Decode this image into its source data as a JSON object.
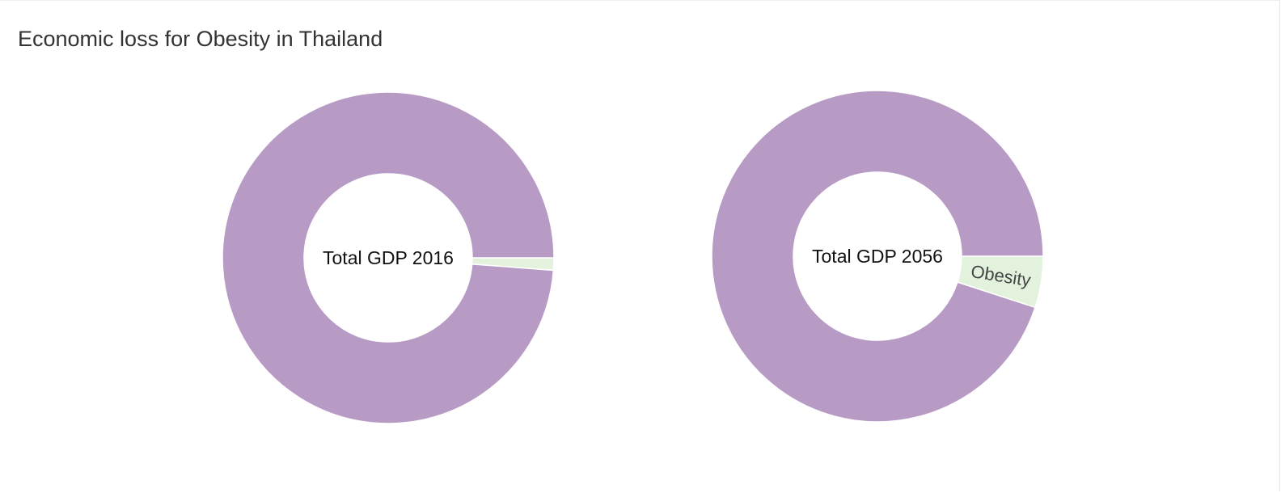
{
  "page": {
    "title": "Economic loss for Obesity in Thailand"
  },
  "colors": {
    "gdp": "#b79bc5",
    "obesity": "#e3f2dc",
    "separator": "#ffffff"
  },
  "chart_data": [
    {
      "type": "pie",
      "variant": "donut",
      "center_label": "Total GDP 2016",
      "slices": [
        {
          "name": "Obesity",
          "value": 1.2,
          "color": "#e3f2dc",
          "label": ""
        },
        {
          "name": "Total GDP",
          "value": 98.8,
          "color": "#b79bc5",
          "label": ""
        }
      ]
    },
    {
      "type": "pie",
      "variant": "donut",
      "center_label": "Total GDP 2056",
      "slices": [
        {
          "name": "Obesity",
          "value": 5,
          "color": "#e3f2dc",
          "label": "Obesity"
        },
        {
          "name": "Total GDP",
          "value": 95,
          "color": "#b79bc5",
          "label": ""
        }
      ]
    }
  ]
}
